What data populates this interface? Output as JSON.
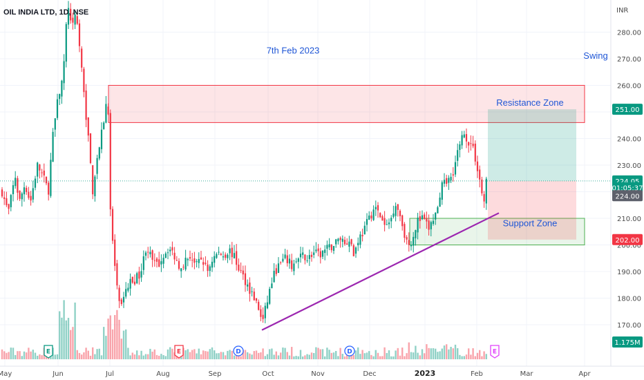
{
  "chart_data": {
    "type": "candlestick",
    "title": "OIL INDIA LTD, 1D, NSE",
    "currency": "INR",
    "y_ticks": [
      170,
      180,
      190,
      200,
      210,
      220,
      230,
      240,
      250,
      260,
      270,
      280
    ],
    "y_tick_labels": [
      "170.00",
      "180.00",
      "190.00",
      "200.00",
      "210.00",
      "220.00",
      "230.00",
      "240.00",
      "250.00",
      "260.00",
      "270.00",
      "280.00"
    ],
    "ylim": [
      162,
      287
    ],
    "x_labels": [
      {
        "label": "May",
        "x": 7,
        "bold": false
      },
      {
        "label": "Jun",
        "x": 84,
        "bold": false
      },
      {
        "label": "Jul",
        "x": 159,
        "bold": false
      },
      {
        "label": "Aug",
        "x": 236,
        "bold": false
      },
      {
        "label": "Sep",
        "x": 311,
        "bold": false
      },
      {
        "label": "Oct",
        "x": 388,
        "bold": false
      },
      {
        "label": "Nov",
        "x": 460,
        "bold": false
      },
      {
        "label": "Dec",
        "x": 535,
        "bold": false
      },
      {
        "label": "2023",
        "x": 615,
        "bold": true
      },
      {
        "label": "Feb",
        "x": 690,
        "bold": false
      },
      {
        "label": "Mar",
        "x": 762,
        "bold": false
      },
      {
        "label": "Apr",
        "x": 846,
        "bold": false
      }
    ],
    "price_badges": [
      {
        "value": "251.00",
        "price": 251,
        "color": "#089981"
      },
      {
        "value": "224.05",
        "price": 224.05,
        "color": "#089981"
      },
      {
        "value": "01:05:37",
        "price": 221.5,
        "color": "#089981"
      },
      {
        "value": "224.00",
        "price": 218.5,
        "color": "#5d606b"
      },
      {
        "value": "202.00",
        "price": 202,
        "color": "#f23645"
      },
      {
        "value": "1.175M",
        "price": 163.5,
        "color": "#089981"
      }
    ],
    "last_price": 224.05,
    "annotations": [
      {
        "text": "7th Feb 2023",
        "price": 272,
        "x": 424
      },
      {
        "text": "Swing",
        "price": 270,
        "x": 862
      },
      {
        "text": "Resistance Zone",
        "price": 252.3,
        "x": 767
      },
      {
        "text": "Support Zone",
        "price": 207,
        "x": 767
      }
    ],
    "zones": [
      {
        "name": "resistance",
        "x1": 157,
        "x2": 846,
        "top": 260,
        "bottom": 246,
        "fill": "rgba(242,54,69,0.13)",
        "stroke": "#f23645"
      },
      {
        "name": "support",
        "x1": 593,
        "x2": 846,
        "top": 210,
        "bottom": 200,
        "fill": "rgba(76,175,80,0.12)",
        "stroke": "#4caf50"
      }
    ],
    "position": {
      "x1": 706,
      "x2": 834,
      "entry": 224.05,
      "target": 251,
      "stop": 202
    },
    "trendline": {
      "x1": 379,
      "p1": 168,
      "x2": 722,
      "p2": 212,
      "color": "#9c27b0"
    },
    "events": [
      {
        "label": "E",
        "x": 70,
        "color": "#089981"
      },
      {
        "label": "E",
        "x": 259,
        "color": "#f23645"
      },
      {
        "label": "D",
        "x": 345,
        "color": "#2962ff"
      },
      {
        "label": "D",
        "x": 506,
        "color": "#2962ff"
      },
      {
        "label": "E",
        "x": 716,
        "color": "#e040fb"
      }
    ]
  }
}
